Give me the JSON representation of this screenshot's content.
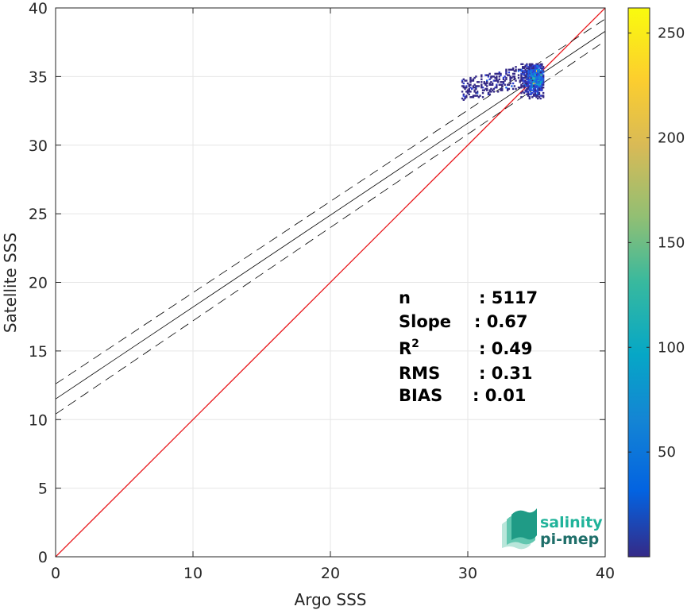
{
  "chart_data": {
    "type": "scatter",
    "xlabel": "Argo SSS",
    "ylabel": "Satellite SSS",
    "xlim": [
      0,
      40
    ],
    "ylim": [
      0,
      40
    ],
    "xticks": [
      "0",
      "10",
      "20",
      "30",
      "40"
    ],
    "yticks": [
      "0",
      "5",
      "10",
      "15",
      "20",
      "25",
      "30",
      "35",
      "40"
    ],
    "grid": true,
    "reference_line": {
      "slope": 1,
      "intercept": 0,
      "color": "#e8161a"
    },
    "fit_line": {
      "slope": 0.67,
      "intercept": 11.5,
      "color": "#000000"
    },
    "confidence_band": {
      "upper_intercept": 12.6,
      "upper_slope": 0.665,
      "lower_intercept": 10.4,
      "lower_slope": 0.68
    },
    "density_cluster": {
      "x_range": [
        29.5,
        35.5
      ],
      "y_range": [
        31.2,
        35.9
      ],
      "x_center": 35.0,
      "y_center": 34.9
    },
    "stats": [
      {
        "label": "n",
        "value": ": 5117"
      },
      {
        "label": "Slope",
        "value": ": 0.67"
      },
      {
        "label": "R",
        "sup": "2",
        "value": ": 0.49"
      },
      {
        "label": "RMS",
        "value": ": 0.31"
      },
      {
        "label": "BIAS",
        "value": ": 0.01"
      }
    ],
    "colorbar": {
      "min": 0,
      "max": 262,
      "ticks": [
        "50",
        "100",
        "150",
        "200",
        "250"
      ],
      "colormap": "parula"
    }
  },
  "logo": {
    "line1": "salinity",
    "line2": "pi-mep",
    "color1": "#20b39a",
    "color2": "#1f6f6a"
  }
}
